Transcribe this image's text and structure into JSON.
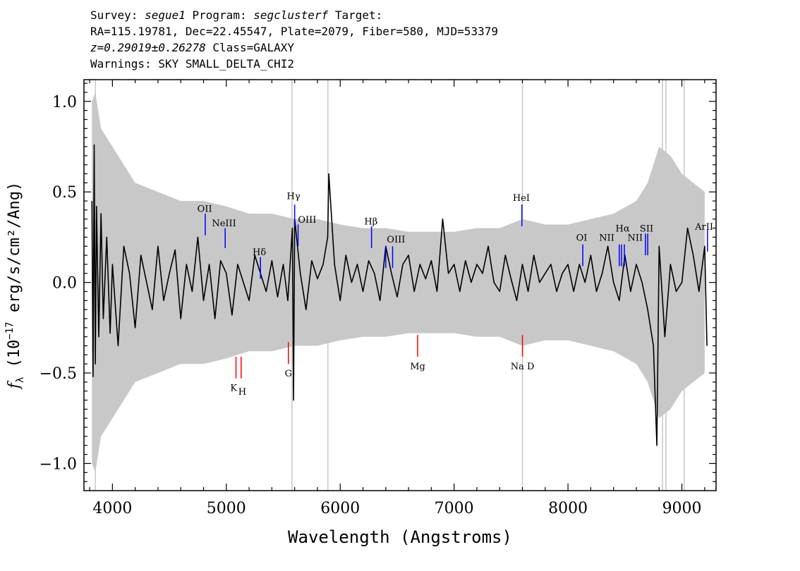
{
  "header": {
    "line1": {
      "survey_label": "Survey:",
      "survey": "segue1",
      "program_label": "Program:",
      "program": "segclusterf",
      "target_label": "Target:"
    },
    "line2": "RA=115.19781, Dec=22.45547, Plate=2079, Fiber=580, MJD=53379",
    "line3": {
      "z": "z=0.29019±0.26278",
      "class": "Class=GALAXY"
    },
    "line4": "Warnings: SKY SMALL_DELTA_CHI2"
  },
  "chart_data": {
    "type": "line",
    "xlabel": "Wavelength (Angstroms)",
    "ylabel": {
      "symbol": "f",
      "subscript": "λ",
      "units_pre": "(10",
      "exponent": "−17",
      "units_post": "erg/s/cm²/Ang)"
    },
    "xlim": [
      3750,
      9300
    ],
    "ylim": [
      -1.15,
      1.12
    ],
    "x_ticks": [
      4000,
      5000,
      6000,
      7000,
      8000,
      9000
    ],
    "x_tick_labels": [
      "4000",
      "5000",
      "6000",
      "7000",
      "8000",
      "9000"
    ],
    "y_ticks": [
      1.0,
      0.5,
      0.0,
      -0.5,
      -1.0
    ],
    "y_tick_labels": [
      "1.0",
      "0.5",
      "0.0",
      "−0.5",
      "−1.0"
    ],
    "grid": false,
    "colors": {
      "flux": "#000000",
      "error_band": "#c8c8c8",
      "emission": "#0000ff",
      "absorption": "#ff0000"
    },
    "series": [
      {
        "role": "flux",
        "x": [
          3820,
          3830,
          3840,
          3850,
          3860,
          3880,
          3900,
          3920,
          3950,
          3980,
          4000,
          4050,
          4100,
          4150,
          4200,
          4250,
          4300,
          4350,
          4400,
          4450,
          4500,
          4550,
          4600,
          4650,
          4700,
          4750,
          4800,
          4850,
          4900,
          4950,
          5000,
          5050,
          5100,
          5150,
          5200,
          5250,
          5300,
          5350,
          5400,
          5450,
          5500,
          5540,
          5580,
          5590,
          5600,
          5650,
          5700,
          5750,
          5800,
          5850,
          5890,
          5900,
          5950,
          6000,
          6050,
          6100,
          6150,
          6200,
          6250,
          6300,
          6350,
          6400,
          6450,
          6500,
          6550,
          6600,
          6650,
          6700,
          6750,
          6800,
          6850,
          6900,
          6950,
          7000,
          7050,
          7100,
          7150,
          7200,
          7250,
          7300,
          7350,
          7400,
          7450,
          7500,
          7550,
          7600,
          7650,
          7700,
          7750,
          7800,
          7850,
          7900,
          7950,
          8000,
          8050,
          8100,
          8150,
          8200,
          8250,
          8300,
          8350,
          8400,
          8450,
          8500,
          8550,
          8600,
          8650,
          8700,
          8750,
          8780,
          8800,
          8850,
          8900,
          8950,
          9000,
          9050,
          9100,
          9150,
          9200,
          9220
        ],
        "y": [
          0.45,
          -0.52,
          0.76,
          -0.45,
          0.42,
          -0.3,
          0.38,
          -0.2,
          0.25,
          -0.28,
          0.1,
          -0.35,
          0.2,
          0.05,
          -0.25,
          0.15,
          0.0,
          -0.15,
          0.2,
          -0.1,
          0.05,
          0.18,
          -0.2,
          0.1,
          -0.05,
          0.25,
          -0.1,
          0.1,
          -0.2,
          0.12,
          0.05,
          -0.18,
          0.1,
          0.0,
          -0.1,
          0.15,
          0.05,
          -0.05,
          0.12,
          -0.08,
          0.1,
          -0.1,
          0.3,
          -0.65,
          0.35,
          0.05,
          -0.15,
          0.12,
          0.02,
          0.1,
          0.25,
          0.6,
          0.1,
          -0.1,
          0.15,
          0.0,
          0.1,
          -0.05,
          0.12,
          0.05,
          -0.1,
          0.2,
          0.05,
          -0.08,
          0.1,
          0.15,
          -0.05,
          0.1,
          0.02,
          0.12,
          -0.05,
          0.35,
          0.05,
          0.1,
          -0.05,
          0.12,
          0.0,
          0.1,
          0.05,
          0.2,
          0.0,
          -0.05,
          0.15,
          0.02,
          -0.1,
          0.1,
          -0.05,
          0.15,
          0.0,
          0.05,
          0.1,
          -0.05,
          0.05,
          0.1,
          -0.05,
          0.1,
          0.0,
          0.15,
          -0.05,
          0.05,
          0.2,
          0.0,
          -0.1,
          0.15,
          -0.05,
          0.1,
          0.0,
          -0.15,
          -0.35,
          -0.9,
          0.2,
          -0.3,
          0.1,
          -0.05,
          0.0,
          0.3,
          0.15,
          -0.05,
          0.2,
          -0.35
        ]
      },
      {
        "role": "error_band",
        "x": [
          3820,
          3850,
          3900,
          4000,
          4100,
          4200,
          4400,
          4600,
          4800,
          5000,
          5200,
          5400,
          5600,
          5800,
          6000,
          6200,
          6400,
          6600,
          6800,
          7000,
          7200,
          7400,
          7600,
          7800,
          8000,
          8200,
          8400,
          8600,
          8700,
          8800,
          8900,
          9000,
          9100,
          9200
        ],
        "y_upper": [
          1.0,
          1.05,
          0.85,
          0.75,
          0.65,
          0.55,
          0.5,
          0.45,
          0.45,
          0.42,
          0.38,
          0.38,
          0.35,
          0.35,
          0.32,
          0.3,
          0.3,
          0.28,
          0.28,
          0.28,
          0.3,
          0.3,
          0.35,
          0.32,
          0.32,
          0.35,
          0.38,
          0.45,
          0.55,
          0.75,
          0.7,
          0.6,
          0.55,
          0.5
        ],
        "y_lower": [
          -1.0,
          -1.05,
          -0.85,
          -0.75,
          -0.65,
          -0.55,
          -0.5,
          -0.45,
          -0.45,
          -0.42,
          -0.38,
          -0.38,
          -0.35,
          -0.35,
          -0.32,
          -0.3,
          -0.3,
          -0.28,
          -0.28,
          -0.28,
          -0.3,
          -0.3,
          -0.35,
          -0.32,
          -0.32,
          -0.35,
          -0.38,
          -0.45,
          -0.55,
          -0.75,
          -0.7,
          -0.6,
          -0.55,
          -0.5
        ]
      }
    ],
    "sky_lines": [
      3850,
      5577,
      5892,
      7600,
      8830,
      8860,
      9020
    ],
    "emission_lines": [
      {
        "label": "OII",
        "x": 4815,
        "y0": 0.26,
        "y1": 0.38
      },
      {
        "label": "NeIII",
        "x": 4990,
        "y0": 0.19,
        "y1": 0.3
      },
      {
        "label": "Hδ",
        "x": 5300,
        "y0": 0.02,
        "y1": 0.14
      },
      {
        "label": "Hγ",
        "x": 5600,
        "y0": 0.31,
        "y1": 0.43
      },
      {
        "label": "OIII",
        "x": 5630,
        "y0": 0.2,
        "y1": 0.32
      },
      {
        "label": "Hβ",
        "x": 6275,
        "y0": 0.19,
        "y1": 0.31
      },
      {
        "label": "OIII",
        "x": 6400,
        "y0": 0.08,
        "y1": 0.2
      },
      {
        "label": "OIII",
        "x": 6460,
        "y0": 0.08,
        "y1": 0.2
      },
      {
        "label": "HeI",
        "x": 7595,
        "y0": 0.31,
        "y1": 0.43
      },
      {
        "label": "OI",
        "x": 8130,
        "y0": 0.09,
        "y1": 0.21
      },
      {
        "label": "NII",
        "x": 8450,
        "y0": 0.09,
        "y1": 0.21
      },
      {
        "label": "Hα",
        "x": 8470,
        "y0": 0.09,
        "y1": 0.21
      },
      {
        "label": "NII",
        "x": 8495,
        "y0": 0.09,
        "y1": 0.21
      },
      {
        "label": "SII",
        "x": 8680,
        "y0": 0.15,
        "y1": 0.27
      },
      {
        "label": "SII",
        "x": 8700,
        "y0": 0.15,
        "y1": 0.27
      },
      {
        "label": "ArII",
        "x": 9225,
        "y0": 0.17,
        "y1": 0.29
      }
    ],
    "emission_labels": [
      {
        "text": "OII",
        "x": 4810,
        "y": 0.39
      },
      {
        "text": "NeIII",
        "x": 4980,
        "y": 0.31
      },
      {
        "text": "Hδ",
        "x": 5290,
        "y": 0.15
      },
      {
        "text": "Hγ",
        "x": 5590,
        "y": 0.46
      },
      {
        "text": "OIII",
        "x": 5710,
        "y": 0.33
      },
      {
        "text": "Hβ",
        "x": 6270,
        "y": 0.32
      },
      {
        "text": "OIII",
        "x": 6490,
        "y": 0.22
      },
      {
        "text": "HeI",
        "x": 7590,
        "y": 0.45
      },
      {
        "text": "OI",
        "x": 8120,
        "y": 0.23
      },
      {
        "text": "NII",
        "x": 8340,
        "y": 0.23
      },
      {
        "text": "Hα",
        "x": 8480,
        "y": 0.28
      },
      {
        "text": "NII",
        "x": 8590,
        "y": 0.23
      },
      {
        "text": "SII",
        "x": 8690,
        "y": 0.28
      },
      {
        "text": "ArII",
        "x": 9195,
        "y": 0.29
      }
    ],
    "absorption_lines": [
      {
        "label": "K",
        "x": 5085,
        "y0": -0.53,
        "y1": -0.41
      },
      {
        "label": "H",
        "x": 5130,
        "y0": -0.53,
        "y1": -0.41
      },
      {
        "label": "G",
        "x": 5545,
        "y0": -0.45,
        "y1": -0.33
      },
      {
        "label": "Mg",
        "x": 6680,
        "y0": -0.41,
        "y1": -0.29
      },
      {
        "label": "Na D",
        "x": 7600,
        "y0": -0.41,
        "y1": -0.29
      }
    ],
    "absorption_labels": [
      {
        "text": "K",
        "x": 5065,
        "y": -0.6
      },
      {
        "text": "H",
        "x": 5140,
        "y": -0.62
      },
      {
        "text": "G",
        "x": 5545,
        "y": -0.52
      },
      {
        "text": "Mg",
        "x": 6680,
        "y": -0.48
      },
      {
        "text": "Na D",
        "x": 7600,
        "y": -0.48
      }
    ]
  }
}
